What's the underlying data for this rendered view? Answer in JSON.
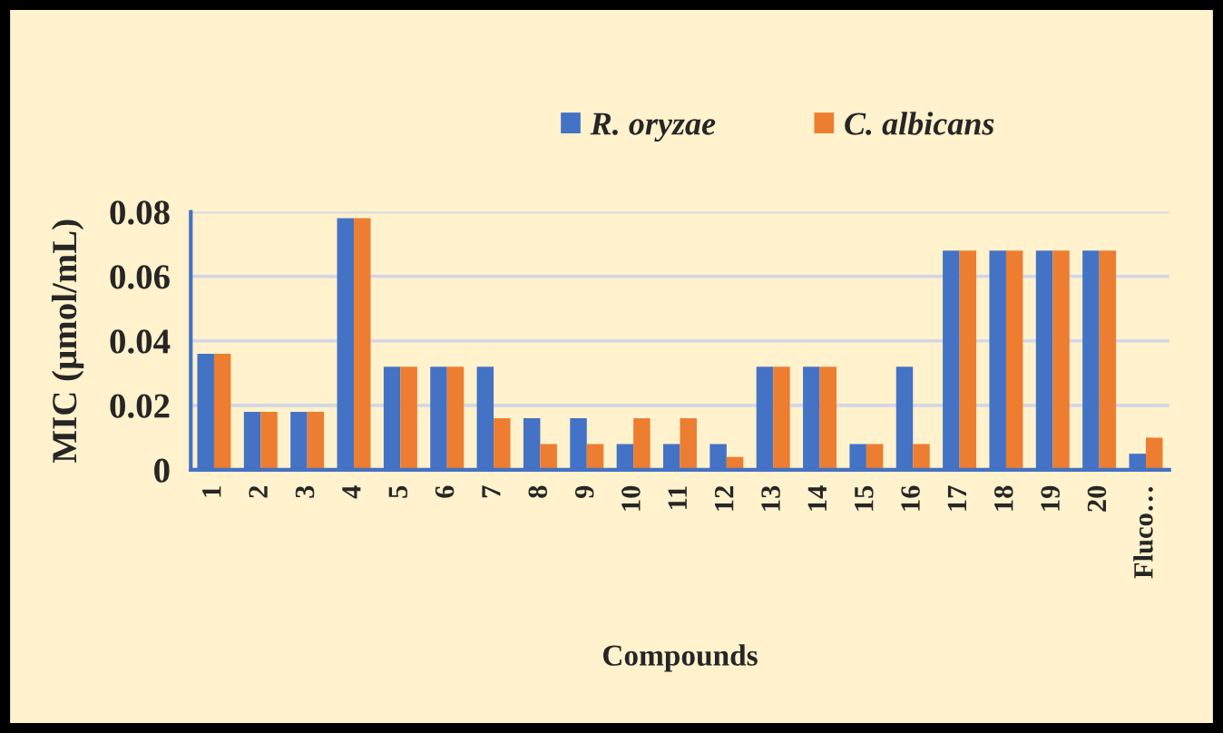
{
  "chart_data": {
    "type": "bar",
    "xlabel": "Compounds",
    "ylabel": "MIC (µmol/mL)",
    "categories": [
      "1",
      "2",
      "3",
      "4",
      "5",
      "6",
      "7",
      "8",
      "9",
      "10",
      "11",
      "12",
      "13",
      "14",
      "15",
      "16",
      "17",
      "18",
      "19",
      "20",
      "Fluco…"
    ],
    "series": [
      {
        "name": "R. oryzae",
        "color": "#4472c4",
        "values": [
          0.036,
          0.018,
          0.018,
          0.078,
          0.032,
          0.032,
          0.032,
          0.016,
          0.016,
          0.008,
          0.008,
          0.008,
          0.032,
          0.032,
          0.008,
          0.032,
          0.068,
          0.068,
          0.068,
          0.068,
          0.005
        ]
      },
      {
        "name": "C. albicans",
        "color": "#ed7d31",
        "values": [
          0.036,
          0.018,
          0.018,
          0.078,
          0.032,
          0.032,
          0.016,
          0.008,
          0.008,
          0.016,
          0.016,
          0.004,
          0.032,
          0.032,
          0.008,
          0.008,
          0.068,
          0.068,
          0.068,
          0.068,
          0.01
        ]
      }
    ],
    "ylim": [
      0,
      0.08
    ],
    "yticks": [
      0,
      0.02,
      0.04,
      0.06,
      0.08
    ],
    "grid": "y",
    "legend": "top"
  }
}
